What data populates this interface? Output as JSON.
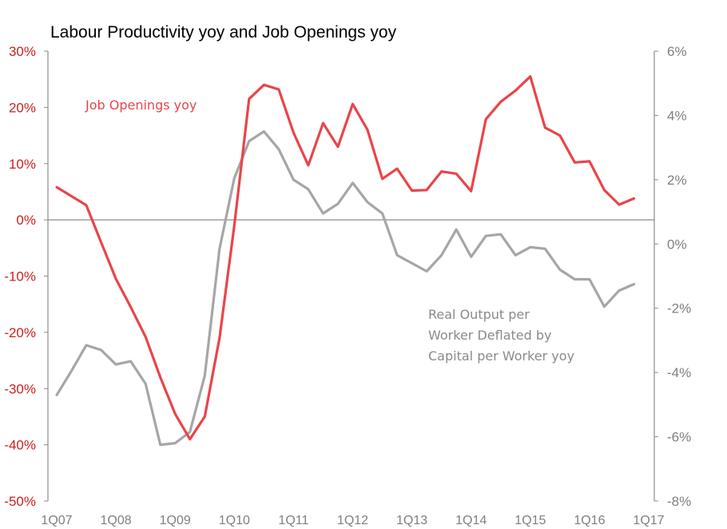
{
  "chart_data": {
    "type": "line",
    "title": "Labour Productivity yoy and Job Openings yoy",
    "x": [
      "1Q07",
      "2Q07",
      "3Q07",
      "4Q07",
      "1Q08",
      "2Q08",
      "3Q08",
      "4Q08",
      "1Q09",
      "2Q09",
      "3Q09",
      "4Q09",
      "1Q10",
      "2Q10",
      "3Q10",
      "4Q10",
      "1Q11",
      "2Q11",
      "3Q11",
      "4Q11",
      "1Q12",
      "2Q12",
      "3Q12",
      "4Q12",
      "1Q13",
      "2Q13",
      "3Q13",
      "4Q13",
      "1Q14",
      "2Q14",
      "3Q14",
      "4Q14",
      "1Q15",
      "2Q15",
      "3Q15",
      "4Q15",
      "1Q16",
      "2Q16",
      "3Q16",
      "4Q16"
    ],
    "x_tick_labels": [
      "1Q07",
      "1Q08",
      "1Q09",
      "1Q10",
      "1Q11",
      "1Q12",
      "1Q13",
      "1Q14",
      "1Q15",
      "1Q16",
      "1Q17"
    ],
    "left_axis": {
      "ylim": [
        -50,
        30
      ],
      "ticks": [
        30,
        20,
        10,
        0,
        -10,
        -20,
        -30,
        -40,
        -50
      ],
      "tick_labels": [
        "30%",
        "20%",
        "10%",
        "0%",
        "-10%",
        "-20%",
        "-30%",
        "-40%",
        "-50%"
      ],
      "color": "#cc1f1f"
    },
    "right_axis": {
      "ylim": [
        -8,
        6
      ],
      "ticks": [
        6,
        4,
        2,
        0,
        -2,
        -4,
        -6,
        -8
      ],
      "tick_labels": [
        "6%",
        "4%",
        "2%",
        "0%",
        "-2%",
        "-4%",
        "-6%",
        "-8%"
      ],
      "color": "#7f7f7f"
    },
    "series": [
      {
        "name": "Job Openings yoy",
        "axis": "left",
        "color": "#e8454a",
        "values": [
          5.8,
          null,
          2.6,
          -4.0,
          -10.5,
          -15.5,
          -20.8,
          -28.0,
          -34.5,
          -39.0,
          -35.0,
          -21.0,
          -1.0,
          21.5,
          24.0,
          23.2,
          15.5,
          9.7,
          17.2,
          13.0,
          20.6,
          16.0,
          7.3,
          9.1,
          5.2,
          5.3,
          8.6,
          8.2,
          5.1,
          17.9,
          21.0,
          23.0,
          25.5,
          16.4,
          15.0,
          10.2,
          10.4,
          5.3,
          2.7,
          3.8
        ]
      },
      {
        "name": "Real Output per Worker Deflated by Capital per Worker  yoy",
        "axis": "right",
        "color": "#a6a6a6",
        "values": [
          -4.7,
          -3.95,
          -3.15,
          -3.3,
          -3.75,
          -3.65,
          -4.35,
          -6.25,
          -6.2,
          -5.85,
          -4.1,
          -0.15,
          2.05,
          3.2,
          3.5,
          2.95,
          2.0,
          1.7,
          0.95,
          1.25,
          1.9,
          1.3,
          0.95,
          -0.35,
          -0.6,
          -0.85,
          -0.35,
          0.45,
          -0.4,
          0.25,
          0.3,
          -0.35,
          -0.1,
          -0.15,
          -0.8,
          -1.1,
          -1.1,
          -1.95,
          -1.45,
          -1.25
        ]
      }
    ],
    "annotations": {
      "job_openings_label": "Job Openings yoy",
      "productivity_label_lines": [
        "Real Output per",
        "Worker Deflated by",
        "Capital per Worker  yoy"
      ]
    },
    "grid": false,
    "legend": "none"
  }
}
